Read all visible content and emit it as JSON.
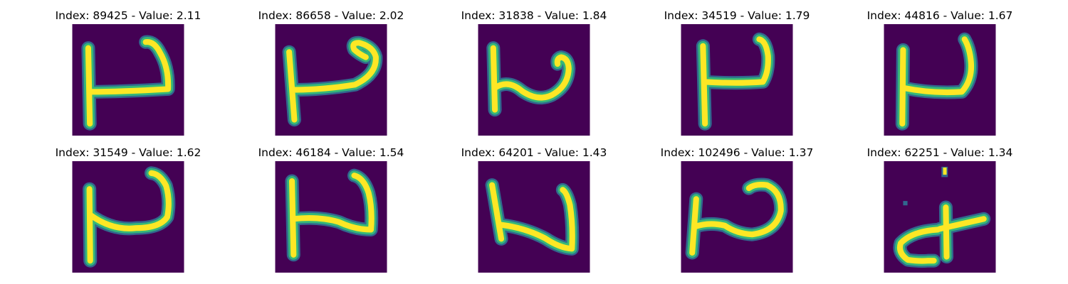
{
  "figure": {
    "background": "#ffffff",
    "colormap": "viridis",
    "colors": {
      "low": "#440154",
      "mid_low": "#31688e",
      "mid": "#35b779",
      "high": "#fde725"
    }
  },
  "panels": [
    {
      "title": "Index: 89425 - Value: 2.11",
      "index": 89425,
      "value": 2.11
    },
    {
      "title": "Index: 86658 - Value: 2.02",
      "index": 86658,
      "value": 2.02
    },
    {
      "title": "Index: 31838 - Value: 1.84",
      "index": 31838,
      "value": 1.84
    },
    {
      "title": "Index: 34519 - Value: 1.79",
      "index": 34519,
      "value": 1.79
    },
    {
      "title": "Index: 44816 - Value: 1.67",
      "index": 44816,
      "value": 1.67
    },
    {
      "title": "Index: 31549 - Value: 1.62",
      "index": 31549,
      "value": 1.62
    },
    {
      "title": "Index: 46184 - Value: 1.54",
      "index": 46184,
      "value": 1.54
    },
    {
      "title": "Index: 64201 - Value: 1.43",
      "index": 64201,
      "value": 1.43
    },
    {
      "title": "Index: 102496 - Value: 1.37",
      "index": 102496,
      "value": 1.37
    },
    {
      "title": "Index: 62251 - Value: 1.34",
      "index": 62251,
      "value": 1.34
    }
  ]
}
